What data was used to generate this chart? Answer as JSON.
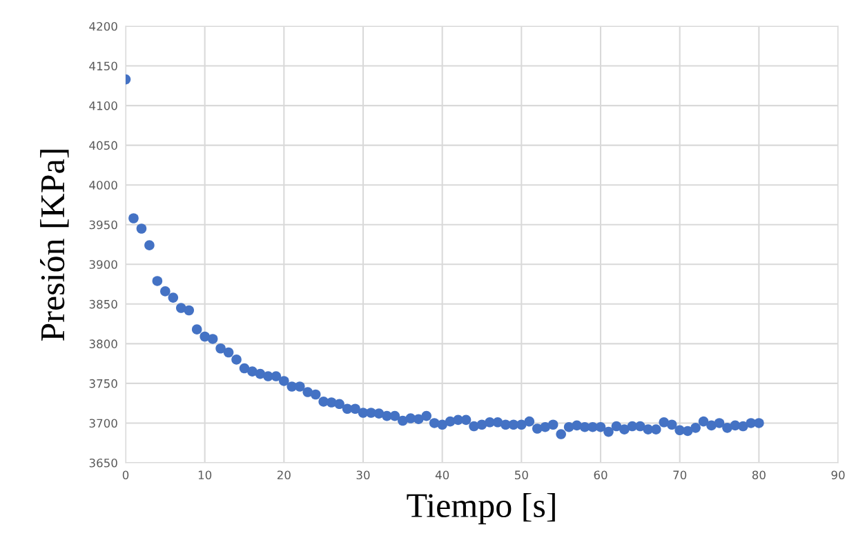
{
  "chart_data": {
    "type": "scatter",
    "xlabel": "Tiempo [s]",
    "ylabel": "Presión [KPa]",
    "x": [
      0,
      1,
      2,
      3,
      4,
      5,
      6,
      7,
      8,
      9,
      10,
      11,
      12,
      13,
      14,
      15,
      16,
      17,
      18,
      19,
      20,
      21,
      22,
      23,
      24,
      25,
      26,
      27,
      28,
      29,
      30,
      31,
      32,
      33,
      34,
      35,
      36,
      37,
      38,
      39,
      40,
      41,
      42,
      43,
      44,
      45,
      46,
      47,
      48,
      49,
      50,
      51,
      52,
      53,
      54,
      55,
      56,
      57,
      58,
      59,
      60,
      61,
      62,
      63,
      64,
      65,
      66,
      67,
      68,
      69,
      70,
      71,
      72,
      73,
      74,
      75,
      76,
      77,
      78,
      79,
      80
    ],
    "series": [
      {
        "color": "#4472c4",
        "values": [
          4133,
          3958,
          3945,
          3924,
          3879,
          3866,
          3858,
          3845,
          3842,
          3818,
          3809,
          3806,
          3794,
          3789,
          3780,
          3769,
          3765,
          3762,
          3759,
          3759,
          3753,
          3746,
          3746,
          3739,
          3736,
          3727,
          3726,
          3724,
          3718,
          3718,
          3713,
          3713,
          3712,
          3709,
          3709,
          3703,
          3706,
          3705,
          3709,
          3700,
          3698,
          3702,
          3704,
          3704,
          3696,
          3698,
          3701,
          3701,
          3698,
          3698,
          3698,
          3702,
          3693,
          3695,
          3698,
          3686,
          3695,
          3697,
          3695,
          3695,
          3695,
          3689,
          3696,
          3692,
          3696,
          3696,
          3692,
          3692,
          3701,
          3698,
          3691,
          3690,
          3694,
          3702,
          3697,
          3700,
          3694,
          3697,
          3696,
          3700,
          3700
        ]
      }
    ],
    "xlim": [
      0,
      90
    ],
    "xticks": [
      0,
      10,
      20,
      30,
      40,
      50,
      60,
      70,
      80,
      90
    ],
    "ylim": [
      3650,
      4200
    ],
    "yticks": [
      3650,
      3700,
      3750,
      3800,
      3850,
      3900,
      3950,
      4000,
      4050,
      4100,
      4150,
      4200
    ],
    "grid": true,
    "marker": "circle"
  }
}
